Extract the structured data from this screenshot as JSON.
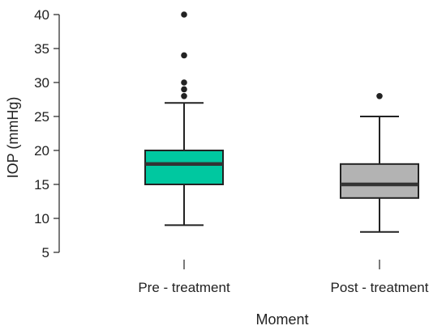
{
  "chart_data": {
    "type": "boxplot",
    "xlabel": "Moment",
    "ylabel": "IOP (mmHg)",
    "ylim": [
      5,
      40
    ],
    "yticks": [
      5,
      10,
      15,
      20,
      25,
      30,
      35,
      40
    ],
    "grid": false,
    "categories": [
      "Pre - treatment",
      "Post - treatment"
    ],
    "boxes": [
      {
        "category": "Pre - treatment",
        "whisker_low": 9,
        "q1": 15,
        "median": 18,
        "q3": 20,
        "whisker_high": 27,
        "outliers": [
          28,
          29,
          30,
          34,
          40
        ],
        "color": "#00c8a0"
      },
      {
        "category": "Post - treatment",
        "whisker_low": 8,
        "q1": 13,
        "median": 15,
        "q3": 18,
        "whisker_high": 25,
        "outliers": [
          28
        ],
        "color": "#b3b3b3"
      }
    ]
  }
}
